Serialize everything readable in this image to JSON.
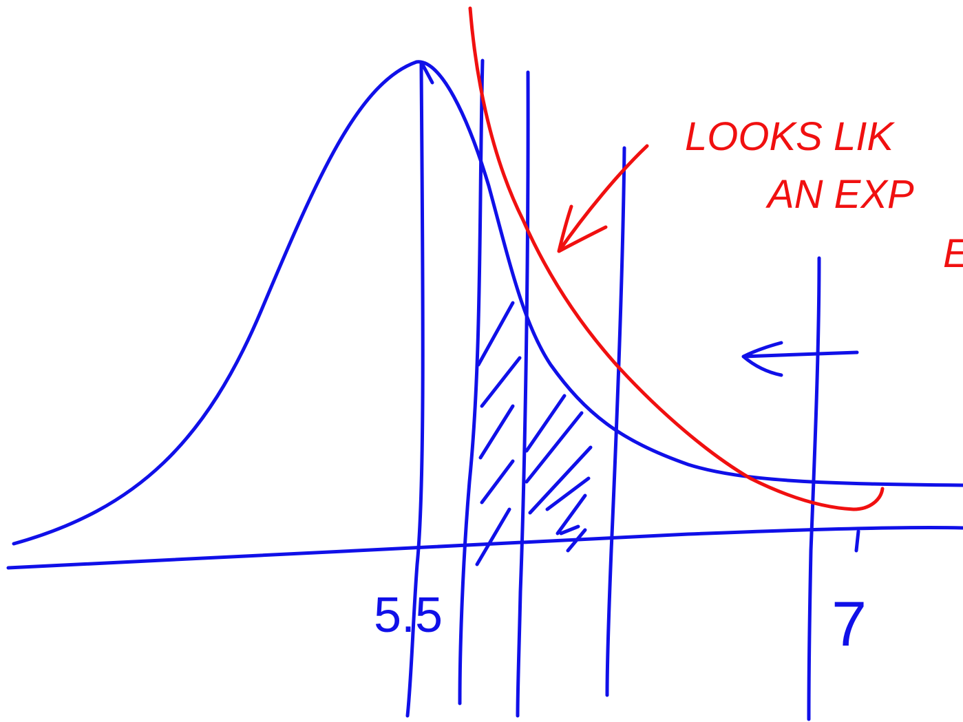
{
  "axis_labels": [
    "5.5",
    "7"
  ],
  "note": [
    "LOOKS LIK",
    "AN EXP",
    "E"
  ]
}
